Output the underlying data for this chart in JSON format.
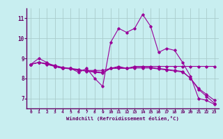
{
  "title": "",
  "xlabel": "Windchill (Refroidissement éolien,°C)",
  "ylabel": "",
  "background_color": "#c8eef0",
  "line_color": "#990099",
  "grid_color": "#aacccc",
  "xlim": [
    -0.5,
    23.5
  ],
  "ylim": [
    6.5,
    11.5
  ],
  "yticks": [
    7,
    8,
    9,
    10,
    11
  ],
  "xticks": [
    0,
    1,
    2,
    3,
    4,
    5,
    6,
    7,
    8,
    9,
    10,
    11,
    12,
    13,
    14,
    15,
    16,
    17,
    18,
    19,
    20,
    21,
    22,
    23
  ],
  "series": [
    [
      8.7,
      9.0,
      8.8,
      8.6,
      8.5,
      8.5,
      8.3,
      8.5,
      8.0,
      7.6,
      9.8,
      10.5,
      10.3,
      10.5,
      11.2,
      10.6,
      9.3,
      9.5,
      9.4,
      8.8,
      8.1,
      7.0,
      6.9,
      6.7
    ],
    [
      8.7,
      8.8,
      8.7,
      8.6,
      8.5,
      8.5,
      8.4,
      8.4,
      8.4,
      8.4,
      8.5,
      8.5,
      8.5,
      8.6,
      8.6,
      8.6,
      8.6,
      8.6,
      8.6,
      8.6,
      8.6,
      8.6,
      8.6,
      8.6
    ],
    [
      8.7,
      8.8,
      8.75,
      8.65,
      8.55,
      8.5,
      8.45,
      8.35,
      8.35,
      8.3,
      8.5,
      8.6,
      8.5,
      8.55,
      8.55,
      8.55,
      8.5,
      8.45,
      8.4,
      8.35,
      8.0,
      7.5,
      7.2,
      6.9
    ],
    [
      8.7,
      8.8,
      8.72,
      8.6,
      8.52,
      8.47,
      8.4,
      8.38,
      8.3,
      8.27,
      8.5,
      8.55,
      8.5,
      8.52,
      8.52,
      8.52,
      8.47,
      8.42,
      8.37,
      8.32,
      8.0,
      7.45,
      7.1,
      6.75
    ]
  ]
}
